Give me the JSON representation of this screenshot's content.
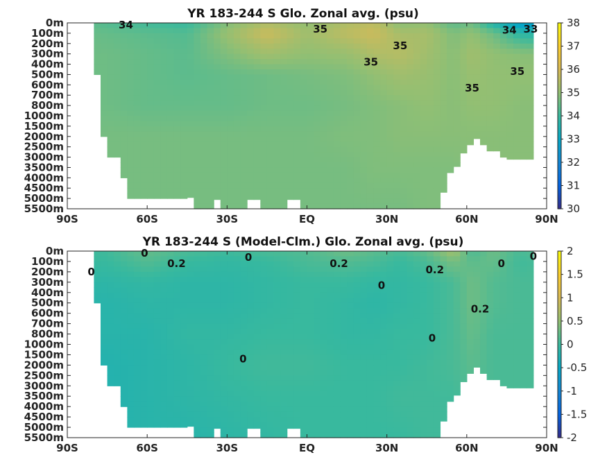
{
  "chart_data": [
    {
      "type": "heatmap",
      "title": "YR 183-244 S Glo. Zonal avg. (psu)",
      "x_ticks": [
        "90S",
        "60S",
        "30S",
        "EQ",
        "30N",
        "60N",
        "90N"
      ],
      "y_ticks": [
        "0m",
        "100m",
        "200m",
        "300m",
        "400m",
        "500m",
        "600m",
        "700m",
        "800m",
        "1000m",
        "1500m",
        "2000m",
        "2500m",
        "3000m",
        "3500m",
        "4000m",
        "4500m",
        "5000m",
        "5500m"
      ],
      "colorbar_ticks": [
        "30",
        "31",
        "32",
        "33",
        "34",
        "35",
        "36",
        "37",
        "38"
      ],
      "clim": [
        30,
        38
      ],
      "colormap": "parula",
      "field": {
        "lat": [
          -90,
          -75,
          -60,
          -45,
          -30,
          -15,
          0,
          15,
          25,
          35,
          45,
          55,
          62,
          70,
          80,
          90
        ],
        "depth_index": [
          0,
          1,
          3,
          5,
          8,
          11,
          14,
          18
        ],
        "values": [
          [
            34.6,
            34.3,
            34.1,
            34.0,
            34.8,
            35.4,
            35.0,
            35.4,
            35.6,
            34.9,
            35.0,
            34.4,
            34.6,
            33.6,
            32.7,
            32.5
          ],
          [
            34.6,
            34.5,
            34.4,
            34.3,
            35.1,
            35.8,
            35.2,
            35.6,
            35.8,
            35.3,
            35.3,
            34.8,
            35.0,
            34.6,
            33.8,
            33.6
          ],
          [
            34.6,
            34.6,
            34.5,
            34.4,
            34.8,
            35.2,
            35.0,
            35.1,
            35.4,
            35.5,
            35.2,
            34.9,
            35.2,
            35.0,
            34.9,
            34.9
          ],
          [
            34.6,
            34.6,
            34.5,
            34.4,
            34.5,
            34.6,
            34.7,
            34.8,
            35.0,
            35.2,
            35.1,
            34.9,
            35.1,
            35.0,
            35.0,
            35.0
          ],
          [
            34.6,
            34.6,
            34.5,
            34.5,
            34.5,
            34.6,
            34.6,
            34.7,
            34.8,
            34.9,
            35.0,
            34.9,
            35.0,
            35.0,
            34.9,
            34.9
          ],
          [
            34.6,
            34.7,
            34.7,
            34.7,
            34.7,
            34.7,
            34.7,
            34.8,
            34.8,
            34.9,
            34.9,
            34.9,
            34.9,
            34.9,
            34.9,
            34.9
          ],
          [
            34.6,
            34.7,
            34.7,
            34.7,
            34.7,
            34.7,
            34.7,
            34.7,
            34.8,
            34.8,
            34.8,
            34.8,
            34.9,
            34.9,
            34.9,
            34.9
          ],
          [
            34.6,
            34.7,
            34.7,
            34.7,
            34.7,
            34.7,
            34.7,
            34.7,
            34.7,
            34.7,
            34.8,
            34.8,
            34.9,
            34.9,
            34.9,
            34.9
          ]
        ]
      },
      "contour_labels": [
        {
          "text": "34",
          "lat": -68,
          "depth_index": 0.2
        },
        {
          "text": "35",
          "lat": 5,
          "depth_index": 0.6
        },
        {
          "text": "35",
          "lat": 35,
          "depth_index": 2.2
        },
        {
          "text": "35",
          "lat": 24,
          "depth_index": 3.8
        },
        {
          "text": "35",
          "lat": 62,
          "depth_index": 6.3
        },
        {
          "text": "35",
          "lat": 79,
          "depth_index": 4.7
        },
        {
          "text": "34",
          "lat": 76,
          "depth_index": 0.7
        },
        {
          "text": "33",
          "lat": 84,
          "depth_index": 0.6
        }
      ]
    },
    {
      "type": "heatmap",
      "title": "YR 183-244 S (Model-Clm.) Glo. Zonal avg. (psu)",
      "x_ticks": [
        "90S",
        "60S",
        "30S",
        "EQ",
        "30N",
        "60N",
        "90N"
      ],
      "y_ticks": [
        "0m",
        "100m",
        "200m",
        "300m",
        "400m",
        "500m",
        "600m",
        "700m",
        "800m",
        "1000m",
        "1500m",
        "2000m",
        "2500m",
        "3000m",
        "3500m",
        "4000m",
        "4500m",
        "5000m",
        "5500m"
      ],
      "colorbar_ticks": [
        "-2",
        "-1.5",
        "-1",
        "-0.5",
        "0",
        "0.5",
        "1",
        "1.5",
        "2"
      ],
      "clim": [
        -2,
        2
      ],
      "colormap": "parula",
      "field": {
        "lat": [
          -90,
          -75,
          -60,
          -45,
          -30,
          -15,
          0,
          15,
          25,
          35,
          45,
          55,
          62,
          70,
          80,
          90
        ],
        "depth_index": [
          0,
          1,
          3,
          5,
          8,
          11,
          14,
          18
        ],
        "values": [
          [
            0.0,
            0.05,
            0.25,
            0.1,
            0.05,
            0.1,
            0.15,
            0.3,
            0.2,
            0.1,
            0.25,
            0.6,
            0.1,
            0.3,
            0.1,
            0.2
          ],
          [
            0.0,
            0.0,
            0.15,
            0.0,
            -0.05,
            0.0,
            0.1,
            0.15,
            0.1,
            0.0,
            0.1,
            0.35,
            0.2,
            0.25,
            0.05,
            0.1
          ],
          [
            -0.1,
            -0.1,
            -0.05,
            -0.1,
            -0.1,
            -0.05,
            0.0,
            0.0,
            -0.05,
            -0.05,
            0.0,
            0.1,
            0.3,
            0.15,
            0.1,
            0.1
          ],
          [
            -0.15,
            -0.15,
            -0.1,
            -0.1,
            -0.1,
            -0.05,
            0.0,
            -0.05,
            -0.1,
            -0.05,
            0.0,
            0.1,
            0.3,
            0.15,
            0.1,
            0.1
          ],
          [
            -0.15,
            -0.15,
            -0.15,
            -0.05,
            -0.05,
            0.0,
            0.0,
            -0.05,
            -0.05,
            0.0,
            0.0,
            0.1,
            0.25,
            0.1,
            0.1,
            0.1
          ],
          [
            -0.2,
            -0.2,
            -0.15,
            -0.1,
            0.0,
            0.05,
            0.05,
            0.0,
            0.0,
            0.0,
            0.05,
            0.1,
            0.2,
            0.1,
            0.1,
            0.1
          ],
          [
            -0.2,
            -0.2,
            -0.15,
            -0.1,
            -0.05,
            0.0,
            0.0,
            0.0,
            0.0,
            0.05,
            0.05,
            0.05,
            0.15,
            0.1,
            0.1,
            0.1
          ],
          [
            -0.2,
            -0.2,
            -0.15,
            -0.15,
            -0.1,
            -0.05,
            0.0,
            0.0,
            0.0,
            0.0,
            0.05,
            0.05,
            0.1,
            0.1,
            0.1,
            0.1
          ]
        ]
      },
      "contour_labels": [
        {
          "text": "0",
          "lat": -61,
          "depth_index": 0.2
        },
        {
          "text": "0.2",
          "lat": -49,
          "depth_index": 1.2
        },
        {
          "text": "0",
          "lat": -81,
          "depth_index": 2.0
        },
        {
          "text": "0",
          "lat": -22,
          "depth_index": 0.6
        },
        {
          "text": "0.2",
          "lat": 12,
          "depth_index": 1.2
        },
        {
          "text": "0.2",
          "lat": 48,
          "depth_index": 1.8
        },
        {
          "text": "0",
          "lat": 73,
          "depth_index": 1.2
        },
        {
          "text": "0",
          "lat": 85,
          "depth_index": 0.5
        },
        {
          "text": "0",
          "lat": 28,
          "depth_index": 3.3
        },
        {
          "text": "0.2",
          "lat": 65,
          "depth_index": 5.6
        },
        {
          "text": "0",
          "lat": 47,
          "depth_index": 8.4
        },
        {
          "text": "0",
          "lat": -24,
          "depth_index": 10.4
        }
      ]
    }
  ]
}
